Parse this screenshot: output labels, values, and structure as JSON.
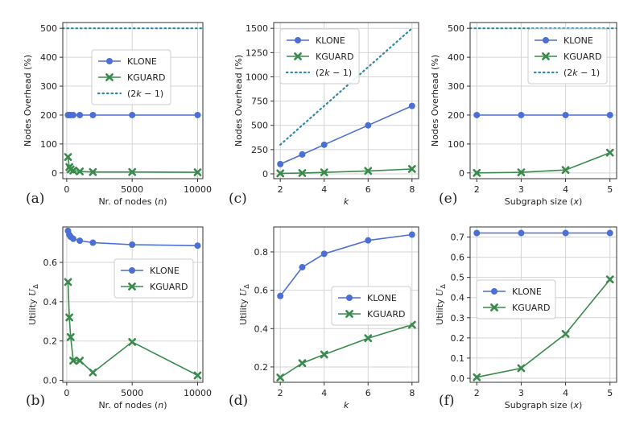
{
  "chart_data": [
    {
      "panel": "(a)",
      "type": "line",
      "xlabel": "Nr. of nodes (n)",
      "ylabel": "Nodes Overhead (%)",
      "xlim": [
        -300,
        10400
      ],
      "ylim": [
        -20,
        520
      ],
      "xticks": [
        0,
        5000,
        10000
      ],
      "yticks": [
        0,
        100,
        200,
        300,
        400,
        500
      ],
      "grid": true,
      "legend_position": "center-left",
      "series": [
        {
          "name": "KLONE",
          "style": "solid-circle",
          "color": "#4b6fd4",
          "x": [
            100,
            200,
            300,
            500,
            1000,
            2000,
            5000,
            10000
          ],
          "y": [
            200,
            200,
            200,
            200,
            200,
            200,
            200,
            200
          ]
        },
        {
          "name": "KGUARD",
          "style": "solid-x",
          "color": "#3a8a4e",
          "x": [
            100,
            200,
            300,
            500,
            1000,
            2000,
            5000,
            10000
          ],
          "y": [
            55,
            20,
            12,
            8,
            5,
            3,
            3,
            2
          ]
        },
        {
          "name": "(2k − 1)",
          "style": "dotted",
          "color": "#2e86ab",
          "x": [
            -300,
            10400
          ],
          "y": [
            500,
            500
          ]
        }
      ]
    },
    {
      "panel": "(c)",
      "type": "line",
      "xlabel": "k",
      "ylabel": "Nodes Overhead (%)",
      "xlim": [
        1.7,
        8.3
      ],
      "ylim": [
        -50,
        1560
      ],
      "xticks": [
        2,
        4,
        6,
        8
      ],
      "yticks": [
        0,
        250,
        500,
        750,
        1000,
        1250,
        1500
      ],
      "grid": true,
      "legend_position": "top-left",
      "series": [
        {
          "name": "KLONE",
          "style": "solid-circle",
          "color": "#4b6fd4",
          "x": [
            2,
            3,
            4,
            6,
            8
          ],
          "y": [
            100,
            200,
            300,
            500,
            700
          ]
        },
        {
          "name": "KGUARD",
          "style": "solid-x",
          "color": "#3a8a4e",
          "x": [
            2,
            3,
            4,
            6,
            8
          ],
          "y": [
            5,
            8,
            15,
            30,
            50
          ]
        },
        {
          "name": "(2k − 1)",
          "style": "dotted",
          "color": "#2e86ab",
          "x": [
            2,
            8
          ],
          "y": [
            300,
            1500
          ]
        }
      ]
    },
    {
      "panel": "(e)",
      "type": "line",
      "xlabel": "Subgraph size (x)",
      "ylabel": "Nodes Overhead (%)",
      "xlim": [
        1.85,
        5.15
      ],
      "ylim": [
        -20,
        520
      ],
      "xticks": [
        2,
        3,
        4,
        5
      ],
      "yticks": [
        0,
        100,
        200,
        300,
        400,
        500
      ],
      "grid": true,
      "legend_position": "top-right",
      "series": [
        {
          "name": "KLONE",
          "style": "solid-circle",
          "color": "#4b6fd4",
          "x": [
            2,
            3,
            4,
            5
          ],
          "y": [
            200,
            200,
            200,
            200
          ]
        },
        {
          "name": "KGUARD",
          "style": "solid-x",
          "color": "#3a8a4e",
          "x": [
            2,
            3,
            4,
            5
          ],
          "y": [
            0,
            2,
            10,
            70
          ]
        },
        {
          "name": "(2k − 1)",
          "style": "dotted",
          "color": "#2e86ab",
          "x": [
            1.85,
            5.15
          ],
          "y": [
            500,
            500
          ]
        }
      ]
    },
    {
      "panel": "(b)",
      "type": "line",
      "xlabel": "Nr. of nodes (n)",
      "ylabel": "Utility U_Δ",
      "xlim": [
        -300,
        10400
      ],
      "ylim": [
        -0.01,
        0.78
      ],
      "xticks": [
        0,
        5000,
        10000
      ],
      "yticks": [
        "0.0",
        "0.2",
        "0.4",
        "0.6"
      ],
      "grid": true,
      "legend_position": "center-right",
      "series": [
        {
          "name": "KLONE",
          "style": "solid-circle",
          "color": "#4b6fd4",
          "x": [
            100,
            200,
            300,
            500,
            1000,
            2000,
            5000,
            10000
          ],
          "y": [
            0.76,
            0.74,
            0.73,
            0.72,
            0.71,
            0.7,
            0.69,
            0.685
          ]
        },
        {
          "name": "KGUARD",
          "style": "solid-x",
          "color": "#3a8a4e",
          "x": [
            100,
            200,
            300,
            500,
            1000,
            2000,
            5000,
            10000
          ],
          "y": [
            0.5,
            0.32,
            0.22,
            0.1,
            0.1,
            0.04,
            0.195,
            0.025
          ]
        }
      ]
    },
    {
      "panel": "(d)",
      "type": "line",
      "xlabel": "k",
      "ylabel": "Utility U_Δ",
      "xlim": [
        1.7,
        8.3
      ],
      "ylim": [
        0.12,
        0.93
      ],
      "xticks": [
        2,
        4,
        6,
        8
      ],
      "yticks": [
        "0.2",
        "0.4",
        "0.6",
        "0.8"
      ],
      "grid": true,
      "legend_position": "center-right",
      "series": [
        {
          "name": "KLONE",
          "style": "solid-circle",
          "color": "#4b6fd4",
          "x": [
            2,
            3,
            4,
            6,
            8
          ],
          "y": [
            0.57,
            0.72,
            0.79,
            0.86,
            0.89
          ]
        },
        {
          "name": "KGUARD",
          "style": "solid-x",
          "color": "#3a8a4e",
          "x": [
            2,
            3,
            4,
            6,
            8
          ],
          "y": [
            0.145,
            0.22,
            0.265,
            0.35,
            0.42
          ]
        }
      ]
    },
    {
      "panel": "(f)",
      "type": "line",
      "xlabel": "Subgraph size (x)",
      "ylabel": "Utility U_Δ",
      "xlim": [
        1.85,
        5.15
      ],
      "ylim": [
        -0.02,
        0.75
      ],
      "xticks": [
        2,
        3,
        4,
        5
      ],
      "yticks": [
        "0.0",
        "0.1",
        "0.2",
        "0.3",
        "0.4",
        "0.5",
        "0.6",
        "0.7"
      ],
      "grid": true,
      "legend_position": "center-left",
      "series": [
        {
          "name": "KLONE",
          "style": "solid-circle",
          "color": "#4b6fd4",
          "x": [
            2,
            3,
            4,
            5
          ],
          "y": [
            0.72,
            0.72,
            0.72,
            0.72
          ]
        },
        {
          "name": "KGUARD",
          "style": "solid-x",
          "color": "#3a8a4e",
          "x": [
            2,
            3,
            4,
            5
          ],
          "y": [
            0.005,
            0.05,
            0.22,
            0.49
          ]
        }
      ]
    }
  ]
}
